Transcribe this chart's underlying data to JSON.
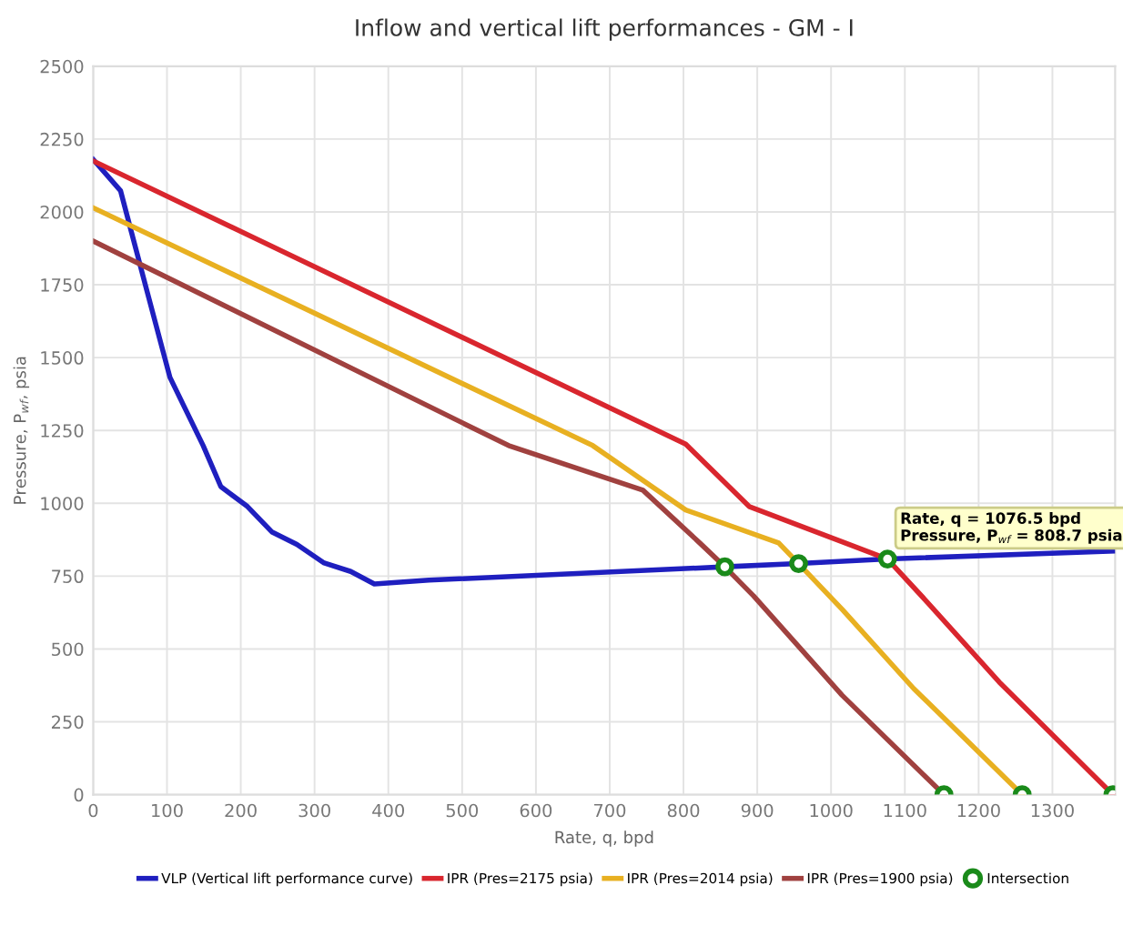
{
  "chart_data": {
    "type": "line",
    "title": "Inflow and vertical lift performances - GM - I",
    "xlabel": "Rate, q, bpd",
    "ylabel": "Pressure, P$_{wf}$, psia",
    "xlim": [
      0,
      1385
    ],
    "ylim": [
      0,
      2500
    ],
    "xticks": [
      0,
      100,
      200,
      300,
      400,
      500,
      600,
      700,
      800,
      900,
      1000,
      1100,
      1200,
      1300
    ],
    "yticks": [
      0,
      250,
      500,
      750,
      1000,
      1250,
      1500,
      1750,
      2000,
      2250,
      2500
    ],
    "grid": true,
    "legend": "bottom",
    "marker": "none",
    "line_style": "solid",
    "series": [
      {
        "name": "VLP (Vertical lift performance curve)",
        "color": "#1f1fbf",
        "x": [
          0,
          37,
          73,
          104,
          149,
          173,
          209,
          242,
          276,
          313,
          349,
          381,
          455,
          856,
          956,
          1076.5,
          1382
        ],
        "values": [
          2180,
          2073,
          1727,
          1432,
          1198,
          1057,
          989,
          902,
          859,
          795,
          766,
          723,
          736,
          782,
          793,
          808.7,
          836
        ]
      },
      {
        "name": "IPR (Pres=2175 psia)",
        "color": "#d9262e",
        "x": [
          0,
          803,
          889,
          1015,
          1076.5,
          1131,
          1228,
          1382
        ],
        "values": [
          2175,
          1203,
          989,
          868,
          808.7,
          659,
          386,
          0
        ]
      },
      {
        "name": "IPR (Pres=2014 psia)",
        "color": "#e8b021",
        "x": [
          0,
          677,
          803,
          929,
          956,
          1015,
          1112,
          1259
        ],
        "values": [
          2014,
          1198,
          977,
          864,
          793,
          636,
          364,
          0
        ]
      },
      {
        "name": "IPR (Pres=1900 psia)",
        "color": "#a0413f",
        "x": [
          0,
          563,
          745,
          822,
          856,
          895,
          1015,
          1153
        ],
        "values": [
          1900,
          1198,
          1045,
          864,
          782,
          682,
          341,
          0
        ]
      },
      {
        "name": "Intersection",
        "type": "scatter",
        "marker": "circle",
        "color": "#1a8a1a",
        "x": [
          856,
          956,
          1076.5,
          1153,
          1259,
          1382
        ],
        "values": [
          782,
          793,
          808.7,
          0,
          0,
          0
        ]
      }
    ],
    "annotations": [
      {
        "text": "Rate, q = 1076.5 bpd\nPressure, P$_{wf}$ = 808.7 psia",
        "x": 1076.5,
        "y": 808.7
      }
    ]
  }
}
